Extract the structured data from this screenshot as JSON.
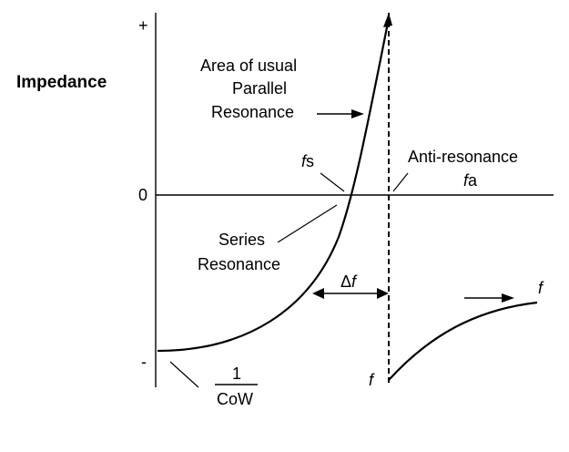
{
  "diagram": {
    "y_axis_title": "Impedance",
    "y_ticks": {
      "plus": "+",
      "zero": "0",
      "minus": "-"
    },
    "parallel_label": [
      "Area of usual",
      "Parallel",
      "Resonance"
    ],
    "fs_label": {
      "var": "f",
      "sub": "s"
    },
    "anti_label": {
      "line1": "Anti-resonance",
      "var": "f",
      "sub": "a"
    },
    "series_label": [
      "Series",
      "Resonance"
    ],
    "delta_label": {
      "sym": "Δ",
      "var": "f"
    },
    "fraction": {
      "numerator": "1",
      "denominator": "CoW"
    },
    "f_bottom": "f",
    "f_right": "f",
    "colors": {
      "line": "#000000",
      "background": "#ffffff"
    }
  }
}
